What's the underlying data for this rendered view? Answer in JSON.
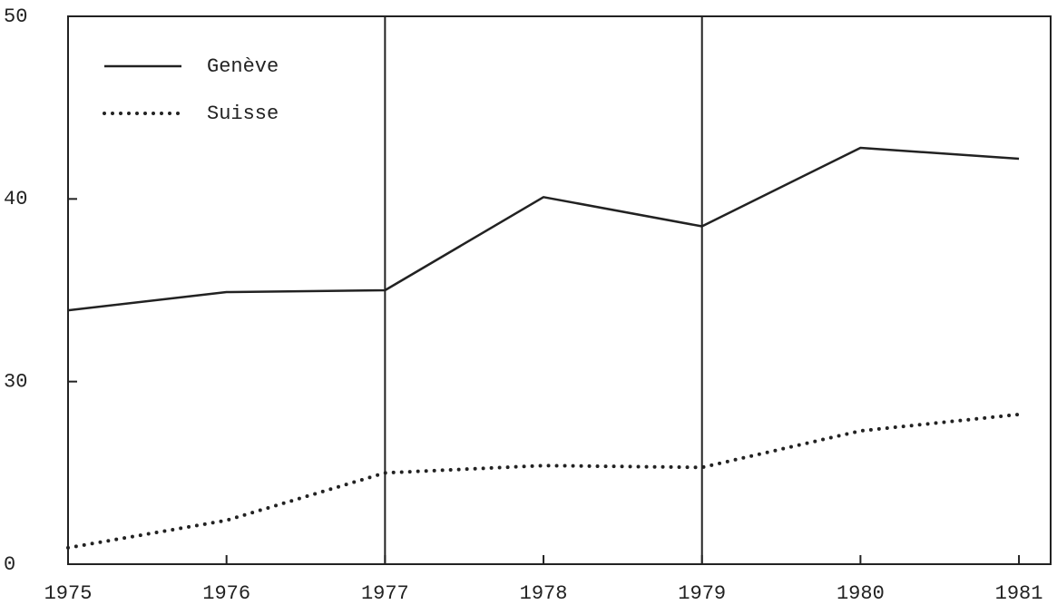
{
  "chart_data": {
    "type": "line",
    "x": [
      1975,
      1976,
      1977,
      1978,
      1979,
      1980,
      1981
    ],
    "series": [
      {
        "name": "Genève",
        "color": "#222222",
        "style": "solid",
        "values": [
          33.9,
          34.9,
          35.0,
          40.1,
          38.5,
          42.8,
          42.2
        ]
      },
      {
        "name": "Suisse",
        "color": "#222222",
        "style": "dotted",
        "values": [
          20.9,
          22.4,
          25.0,
          25.4,
          25.3,
          27.3,
          28.2
        ]
      }
    ],
    "xlim": [
      1975,
      1981.2
    ],
    "xticks": [
      1975,
      1976,
      1977,
      1978,
      1979,
      1980,
      1981
    ],
    "ylim": [
      20,
      50
    ],
    "yticks": [
      {
        "value": 20,
        "label": "0"
      },
      30,
      40,
      50
    ],
    "vlines": [
      1977,
      1979
    ],
    "legend": "upper left"
  }
}
